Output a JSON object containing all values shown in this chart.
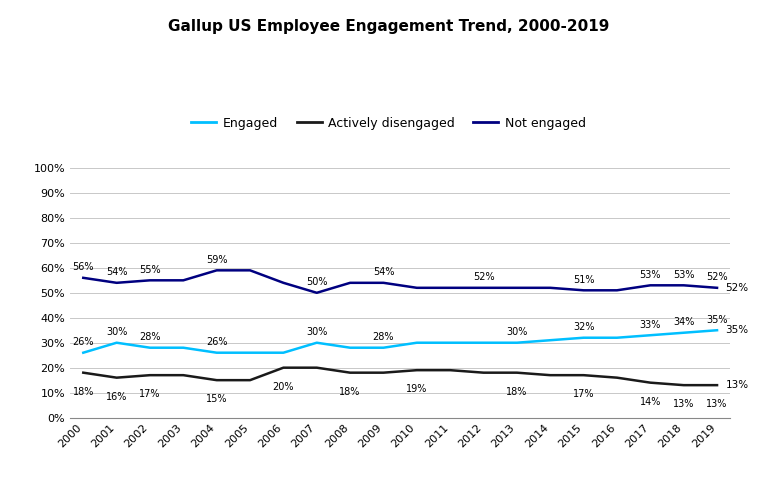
{
  "title": "Gallup US Employee Engagement Trend, 2000-2019",
  "years": [
    2000,
    2001,
    2002,
    2003,
    2004,
    2005,
    2006,
    2007,
    2008,
    2009,
    2010,
    2011,
    2012,
    2013,
    2014,
    2015,
    2016,
    2017,
    2018,
    2019
  ],
  "engaged": [
    26,
    30,
    28,
    28,
    26,
    26,
    26,
    30,
    28,
    28,
    30,
    30,
    30,
    30,
    31,
    32,
    32,
    33,
    34,
    35
  ],
  "actively_disengaged": [
    18,
    16,
    17,
    17,
    15,
    15,
    20,
    20,
    18,
    18,
    19,
    19,
    18,
    18,
    17,
    17,
    16,
    14,
    13,
    13
  ],
  "not_engaged": [
    56,
    54,
    55,
    55,
    59,
    59,
    54,
    50,
    54,
    54,
    52,
    52,
    52,
    52,
    52,
    51,
    51,
    53,
    53,
    52
  ],
  "engaged_labels": [
    26,
    30,
    28,
    null,
    26,
    null,
    null,
    30,
    null,
    28,
    null,
    null,
    null,
    30,
    null,
    32,
    null,
    33,
    34,
    35
  ],
  "adis_labels": [
    18,
    16,
    17,
    null,
    15,
    null,
    20,
    null,
    18,
    null,
    19,
    null,
    null,
    18,
    null,
    17,
    null,
    14,
    13,
    13
  ],
  "ne_labels": [
    56,
    54,
    55,
    null,
    59,
    null,
    null,
    50,
    null,
    54,
    null,
    null,
    52,
    null,
    null,
    51,
    null,
    53,
    53,
    52
  ],
  "engaged_color": "#00BFFF",
  "actively_disengaged_color": "#1a1a1a",
  "not_engaged_color": "#000080",
  "background_color": "#FFFFFF",
  "grid_color": "#C8C8C8",
  "yticks": [
    0,
    10,
    20,
    30,
    40,
    50,
    60,
    70,
    80,
    90,
    100
  ]
}
